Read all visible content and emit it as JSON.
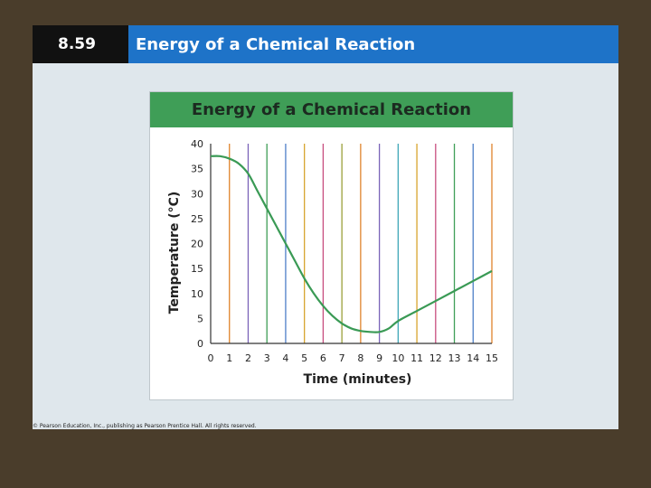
{
  "header": {
    "number": "8.59",
    "title": "Energy of a Chemical Reaction"
  },
  "footer": {
    "copyright": "© Pearson Education, Inc., publishing as Pearson Prentice Hall. All rights reserved."
  },
  "colors": {
    "background": "#4a3d2b",
    "slide": "#dfe7ec",
    "header_number_bg": "#111111",
    "header_title_bg": "#1e73c8",
    "panel_header_bg": "#3f9e57",
    "curve": "#3a9a55"
  },
  "chart_data": {
    "type": "line",
    "title": "Energy of a Chemical Reaction",
    "xlabel": "Time (minutes)",
    "ylabel": "Temperature (°C)",
    "xlim": [
      0,
      15
    ],
    "ylim": [
      0,
      40
    ],
    "xticks": [
      0,
      1,
      2,
      3,
      4,
      5,
      6,
      7,
      8,
      9,
      10,
      11,
      12,
      13,
      14,
      15
    ],
    "yticks": [
      0,
      5,
      10,
      15,
      20,
      25,
      30,
      35,
      40
    ],
    "grid": "vertical colored lines",
    "grid_colors": [
      "#e0832b",
      "#7a63b8",
      "#3f9e57",
      "#4e7fc8",
      "#d8a52e",
      "#c84d7f",
      "#9aa03a",
      "#e0832b",
      "#7a63b8",
      "#3fa6b8",
      "#d8a52e",
      "#c84d7f",
      "#3f9e57",
      "#4e7fc8",
      "#e0832b"
    ],
    "series": [
      {
        "x": [
          0,
          0.5,
          1,
          1.5,
          2,
          2.5,
          3,
          3.5,
          4,
          4.5,
          5,
          5.5,
          6,
          6.5,
          7,
          7.5,
          8,
          8.5,
          9,
          9.5,
          10,
          11,
          12,
          13,
          14,
          15
        ],
        "y": [
          37.5,
          37.5,
          37,
          36,
          34,
          30.5,
          27,
          23.5,
          20,
          16.5,
          13,
          10,
          7.5,
          5.5,
          4,
          3,
          2.5,
          2.3,
          2.3,
          3,
          4.5,
          6.5,
          8.5,
          10.5,
          12.5,
          14.5
        ]
      }
    ]
  }
}
